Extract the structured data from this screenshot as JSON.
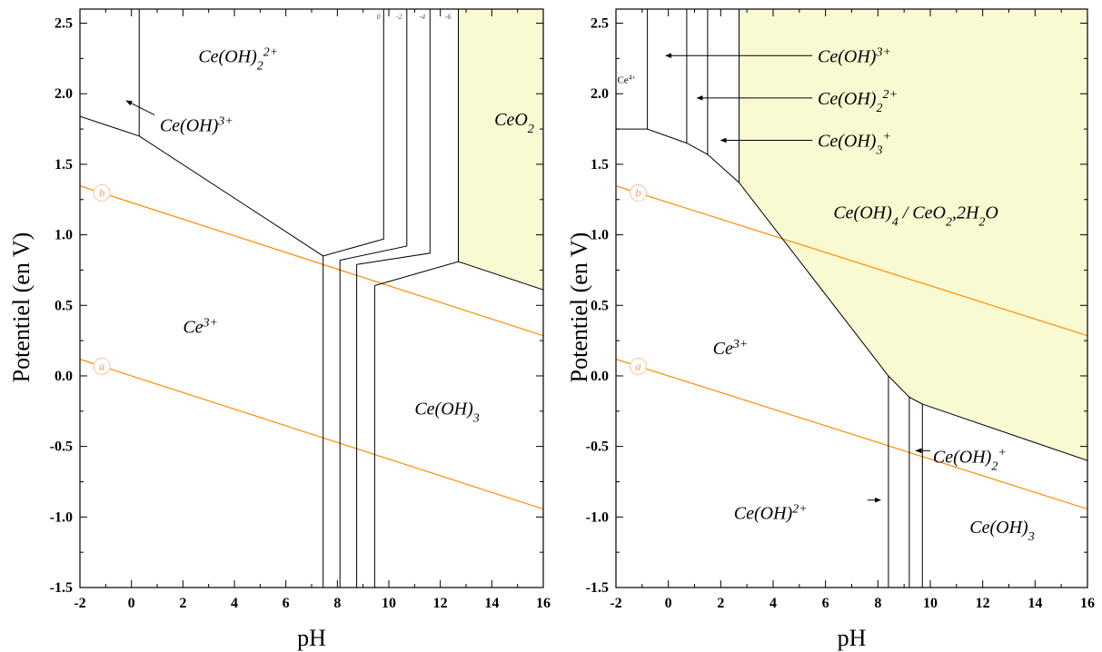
{
  "chart_data": [
    {
      "type": "line",
      "title": "",
      "xlabel": "pH",
      "ylabel": "Potentiel (en V)",
      "xlim": [
        -2,
        16
      ],
      "ylim": [
        -1.5,
        2.6
      ],
      "xticks": [
        -2,
        0,
        2,
        4,
        6,
        8,
        10,
        12,
        14,
        16
      ],
      "yticks": [
        -1.5,
        -1.0,
        -0.5,
        0.0,
        0.5,
        1.0,
        1.5,
        2.0,
        2.5
      ],
      "xtick_labels": [
        "-2",
        "0",
        "2",
        "4",
        "6",
        "8",
        "10",
        "12",
        "14",
        "16"
      ],
      "ytick_labels": [
        "-1.5",
        "-1.0",
        "-0.5",
        "0.0",
        "0.5",
        "1.0",
        "1.5",
        "2.0",
        "2.5"
      ],
      "shaded_regions": [
        {
          "name": "CeO2",
          "color": "#fafad2",
          "points": [
            [
              12.7,
              2.6
            ],
            [
              16,
              2.6
            ],
            [
              16,
              0.61
            ],
            [
              12.7,
              0.81
            ]
          ]
        }
      ],
      "boundaries": [
        {
          "points": [
            [
              -2,
              1.84
            ],
            [
              0.3,
              1.7
            ],
            [
              7.45,
              0.85
            ]
          ]
        },
        {
          "points": [
            [
              0.3,
              1.7
            ],
            [
              0.3,
              2.6
            ]
          ]
        },
        {
          "points": [
            [
              7.45,
              0.85
            ],
            [
              7.45,
              -1.5
            ]
          ]
        },
        {
          "points": [
            [
              8.1,
              0.82
            ],
            [
              8.1,
              -1.5
            ]
          ]
        },
        {
          "points": [
            [
              8.75,
              0.79
            ],
            [
              8.75,
              -1.5
            ]
          ]
        },
        {
          "points": [
            [
              9.45,
              0.64
            ],
            [
              9.45,
              -1.5
            ]
          ]
        },
        {
          "points": [
            [
              7.45,
              0.85
            ],
            [
              9.8,
              0.97
            ],
            [
              9.8,
              2.6
            ]
          ]
        },
        {
          "points": [
            [
              8.1,
              0.82
            ],
            [
              10.7,
              0.92
            ],
            [
              10.7,
              2.6
            ]
          ]
        },
        {
          "points": [
            [
              8.75,
              0.79
            ],
            [
              11.6,
              0.87
            ],
            [
              11.6,
              2.6
            ]
          ]
        },
        {
          "points": [
            [
              9.45,
              0.64
            ],
            [
              12.7,
              0.81
            ],
            [
              12.7,
              2.6
            ]
          ]
        },
        {
          "points": [
            [
              12.7,
              0.81
            ],
            [
              16,
              0.61
            ]
          ]
        }
      ],
      "water_lines": [
        {
          "label": "b",
          "color": "#ff8c00",
          "points": [
            [
              -2,
              1.347
            ],
            [
              16,
              0.285
            ]
          ]
        },
        {
          "label": "a",
          "color": "#ff8c00",
          "points": [
            [
              -2,
              0.118
            ],
            [
              16,
              -0.944
            ]
          ]
        }
      ],
      "top_tick_labels": [
        "0",
        "-2",
        "-4",
        "-6"
      ],
      "annotations": [
        {
          "text": "Ce(OH)",
          "sub": "2",
          "sup": "2+",
          "x": 2.6,
          "y": 2.27
        },
        {
          "text": "Ce(OH)",
          "sub": "",
          "sup": "3+",
          "x": 1.1,
          "y": 1.78
        },
        {
          "text": "CeO",
          "sub": "2",
          "sup": "",
          "x": 14.1,
          "y": 1.82
        },
        {
          "text": "Ce",
          "sub": "",
          "sup": "3+",
          "x": 2.0,
          "y": 0.35
        },
        {
          "text": "Ce(OH)",
          "sub": "3",
          "sup": "",
          "x": 11.0,
          "y": -0.23
        }
      ],
      "arrows": [
        {
          "from": [
            0.9,
            1.85
          ],
          "to": [
            -0.2,
            1.95
          ]
        }
      ]
    },
    {
      "type": "line",
      "title": "",
      "xlabel": "pH",
      "ylabel": "Potentiel (en V)",
      "xlim": [
        -2,
        16
      ],
      "ylim": [
        -1.5,
        2.6
      ],
      "xticks": [
        -2,
        0,
        2,
        4,
        6,
        8,
        10,
        12,
        14,
        16
      ],
      "yticks": [
        -1.5,
        -1.0,
        -0.5,
        0.0,
        0.5,
        1.0,
        1.5,
        2.0,
        2.5
      ],
      "xtick_labels": [
        "-2",
        "0",
        "2",
        "4",
        "6",
        "8",
        "10",
        "12",
        "14",
        "16"
      ],
      "ytick_labels": [
        "-1.5",
        "-1.0",
        "-0.5",
        "0.0",
        "0.5",
        "1.0",
        "1.5",
        "2.0",
        "2.5"
      ],
      "shaded_regions": [
        {
          "name": "Ce(OH)4 / CeO2,2H2O",
          "color": "#fafad2",
          "points": [
            [
              2.7,
              2.6
            ],
            [
              16,
              2.6
            ],
            [
              16,
              -0.6
            ],
            [
              9.7,
              -0.2
            ],
            [
              9.2,
              -0.15
            ],
            [
              8.4,
              0.0
            ],
            [
              2.7,
              1.37
            ]
          ]
        }
      ],
      "boundaries": [
        {
          "points": [
            [
              -2,
              1.75
            ],
            [
              -0.8,
              1.75
            ],
            [
              0.7,
              1.65
            ],
            [
              1.5,
              1.57
            ],
            [
              2.7,
              1.37
            ],
            [
              8.4,
              0.0
            ],
            [
              9.2,
              -0.15
            ],
            [
              9.7,
              -0.2
            ],
            [
              16,
              -0.6
            ]
          ]
        },
        {
          "points": [
            [
              -0.8,
              1.75
            ],
            [
              -0.8,
              2.6
            ]
          ]
        },
        {
          "points": [
            [
              0.7,
              1.65
            ],
            [
              0.7,
              2.6
            ]
          ]
        },
        {
          "points": [
            [
              1.5,
              1.57
            ],
            [
              1.5,
              2.6
            ]
          ]
        },
        {
          "points": [
            [
              2.7,
              1.37
            ],
            [
              2.7,
              2.6
            ]
          ]
        },
        {
          "points": [
            [
              8.4,
              0.0
            ],
            [
              8.4,
              -1.5
            ]
          ]
        },
        {
          "points": [
            [
              9.2,
              -0.15
            ],
            [
              9.2,
              -1.5
            ]
          ]
        },
        {
          "points": [
            [
              9.7,
              -0.2
            ],
            [
              9.7,
              -1.5
            ]
          ]
        }
      ],
      "water_lines": [
        {
          "label": "b",
          "color": "#ff8c00",
          "points": [
            [
              -2,
              1.347
            ],
            [
              16,
              0.285
            ]
          ]
        },
        {
          "label": "a",
          "color": "#ff8c00",
          "points": [
            [
              -2,
              0.118
            ],
            [
              16,
              -0.944
            ]
          ]
        }
      ],
      "annotations": [
        {
          "text": "Ce",
          "sub": "",
          "sup": "4+",
          "x": -1.95,
          "y": 2.12,
          "small": true
        },
        {
          "text": "Ce(OH)",
          "sub": "",
          "sup": "3+",
          "x": 5.7,
          "y": 2.27
        },
        {
          "text": "Ce(OH)",
          "sub": "2",
          "sup": "2+",
          "x": 5.7,
          "y": 1.97
        },
        {
          "text": "Ce(OH)",
          "sub": "3",
          "sup": "+",
          "x": 5.7,
          "y": 1.67
        },
        {
          "text": "Ce(OH)",
          "sub": "4",
          "sup": "",
          "x": 6.3,
          "y": 1.16,
          "suffix": " / CeO",
          "suffix_sub": "2",
          "tail": ",2H",
          "tail_sub": "2",
          "end": "O"
        },
        {
          "text": "Ce",
          "sub": "",
          "sup": "3+",
          "x": 1.7,
          "y": 0.2
        },
        {
          "text": "Ce(OH)",
          "sub": "2",
          "sup": "+",
          "x": 10.1,
          "y": -0.57
        },
        {
          "text": "Ce(OH)",
          "sub": "",
          "sup": "2+",
          "x": 2.5,
          "y": -0.97
        },
        {
          "text": "Ce(OH)",
          "sub": "3",
          "sup": "",
          "x": 11.5,
          "y": -1.07
        }
      ],
      "arrows": [
        {
          "from": [
            5.5,
            2.27
          ],
          "to": [
            -0.1,
            2.27
          ]
        },
        {
          "from": [
            5.5,
            1.97
          ],
          "to": [
            1.1,
            1.97
          ]
        },
        {
          "from": [
            5.5,
            1.67
          ],
          "to": [
            2.0,
            1.67
          ]
        },
        {
          "from": [
            10.0,
            -0.53
          ],
          "to": [
            9.45,
            -0.53
          ]
        },
        {
          "from": [
            7.6,
            -0.88
          ],
          "to": [
            8.1,
            -0.88
          ]
        }
      ]
    }
  ]
}
